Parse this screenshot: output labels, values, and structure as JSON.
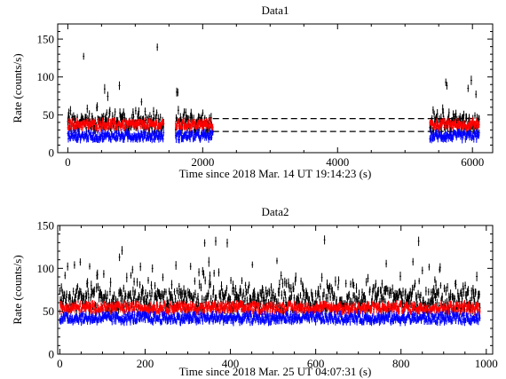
{
  "chart_data": [
    {
      "type": "scatter",
      "title": "Data1",
      "xlabel": "Time since 2018 Mar. 14 UT 19:14:23 (s)",
      "ylabel": "Rate (counts/s)",
      "xlim": [
        -150,
        6300
      ],
      "ylim": [
        0,
        170
      ],
      "xticks": [
        0,
        2000,
        4000,
        6000
      ],
      "yticks": [
        0,
        50,
        100,
        150
      ],
      "grid": false,
      "segments": [
        [
          0,
          1420
        ],
        [
          1600,
          2150
        ],
        [
          5370,
          6100
        ]
      ],
      "reference_lines": [
        {
          "style": "dashed",
          "color": "#000000",
          "y": 45,
          "x_range": [
            2150,
            6100
          ]
        },
        {
          "style": "dashed",
          "color": "#000000",
          "y": 28,
          "x_range": [
            2150,
            6100
          ]
        }
      ],
      "series": [
        {
          "color": "#000000",
          "level": 38,
          "spread": 10,
          "flare_max": 150
        },
        {
          "color": "#ff0000",
          "level": 37,
          "spread": 5
        },
        {
          "color": "#0000ff",
          "level": 22,
          "spread": 5
        }
      ]
    },
    {
      "type": "scatter",
      "title": "Data2",
      "xlabel": "Time since 2018 Mar. 25 UT 04:07:31 (s)",
      "ylabel": "Rate (counts/s)",
      "xlim": [
        -5,
        1015
      ],
      "ylim": [
        0,
        150
      ],
      "xticks": [
        0,
        200,
        400,
        600,
        800,
        1000
      ],
      "yticks": [
        0,
        50,
        100,
        150
      ],
      "grid": false,
      "segments": [
        [
          0,
          985
        ]
      ],
      "reference_lines": [],
      "series": [
        {
          "color": "#000000",
          "level": 62,
          "spread": 12,
          "flare_max": 135
        },
        {
          "color": "#ff0000",
          "level": 54,
          "spread": 5
        },
        {
          "color": "#0000ff",
          "level": 42,
          "spread": 5
        }
      ]
    }
  ]
}
